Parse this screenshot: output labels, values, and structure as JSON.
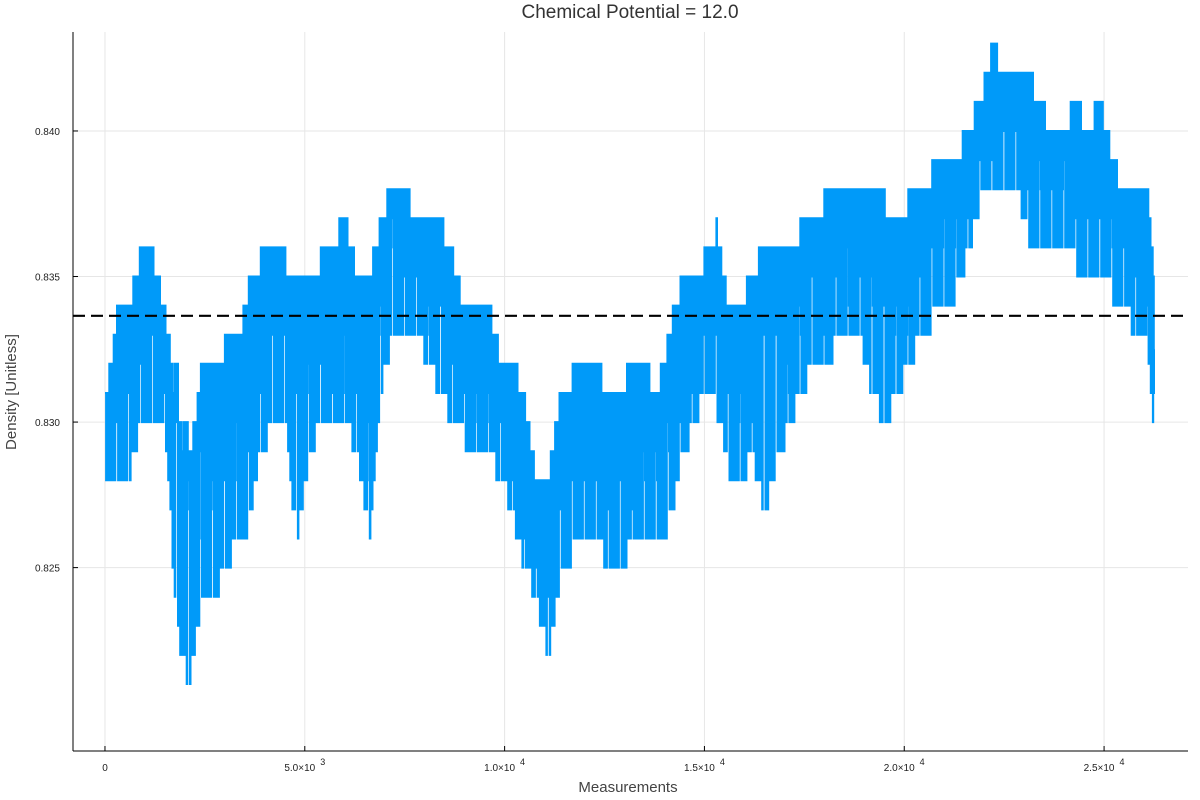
{
  "chart_data": {
    "type": "line",
    "title": "Chemical Potential = 12.0",
    "xlabel": "Measurements",
    "ylabel": "Density [Unitless]",
    "xlim": [
      -800,
      27100
    ],
    "ylim": [
      0.8187,
      0.8434
    ],
    "x_ticks": [
      {
        "value": 0,
        "mantissa": "0",
        "exponent": ""
      },
      {
        "value": 5000,
        "mantissa": "5.0×10",
        "exponent": "3"
      },
      {
        "value": 10000,
        "mantissa": "1.0×10",
        "exponent": "4"
      },
      {
        "value": 15000,
        "mantissa": "1.5×10",
        "exponent": "4"
      },
      {
        "value": 20000,
        "mantissa": "2.0×10",
        "exponent": "4"
      },
      {
        "value": 25000,
        "mantissa": "2.5×10",
        "exponent": "4"
      }
    ],
    "y_ticks": [
      {
        "value": 0.825,
        "label": "0.825"
      },
      {
        "value": 0.83,
        "label": "0.830"
      },
      {
        "value": 0.835,
        "label": "0.835"
      },
      {
        "value": 0.84,
        "label": "0.840"
      }
    ],
    "grid": true,
    "legend": "none",
    "series": [
      {
        "color": "#009af9",
        "x": [
          0,
          300,
          600,
          900,
          1200,
          1500,
          1800,
          2100,
          2400,
          2700,
          3000,
          3300,
          3600,
          3900,
          4200,
          4500,
          4800,
          5100,
          5400,
          5700,
          6000,
          6300,
          6600,
          6900,
          7200,
          7500,
          7800,
          8100,
          8400,
          8700,
          9000,
          9300,
          9600,
          9900,
          10200,
          10500,
          10800,
          11100,
          11400,
          11700,
          12000,
          12300,
          12600,
          12900,
          13200,
          13500,
          13800,
          14100,
          14400,
          14700,
          15000,
          15300,
          15600,
          15900,
          16200,
          16500,
          16800,
          17100,
          17400,
          17700,
          18000,
          18300,
          18600,
          18900,
          19200,
          19500,
          19800,
          20100,
          20400,
          20700,
          21000,
          21300,
          21600,
          21900,
          22200,
          22500,
          22800,
          23100,
          23400,
          23700,
          24000,
          24300,
          24600,
          24900,
          25200,
          25500,
          25800,
          26100,
          26250
        ],
        "values": [
          0.83,
          0.8315,
          0.832,
          0.8335,
          0.833,
          0.8315,
          0.83,
          0.827,
          0.828,
          0.829,
          0.8295,
          0.8285,
          0.83,
          0.832,
          0.833,
          0.8335,
          0.832,
          0.8315,
          0.833,
          0.832,
          0.833,
          0.832,
          0.83,
          0.834,
          0.8355,
          0.836,
          0.835,
          0.8345,
          0.834,
          0.833,
          0.8325,
          0.831,
          0.8315,
          0.8305,
          0.829,
          0.8275,
          0.826,
          0.8255,
          0.827,
          0.8285,
          0.829,
          0.8285,
          0.828,
          0.8285,
          0.829,
          0.8295,
          0.8285,
          0.8295,
          0.831,
          0.8325,
          0.8335,
          0.833,
          0.8315,
          0.8305,
          0.831,
          0.832,
          0.8315,
          0.8325,
          0.834,
          0.8345,
          0.834,
          0.8355,
          0.835,
          0.836,
          0.835,
          0.8345,
          0.8335,
          0.834,
          0.8355,
          0.836,
          0.8365,
          0.837,
          0.838,
          0.8395,
          0.8405,
          0.84,
          0.8405,
          0.8395,
          0.8385,
          0.838,
          0.8385,
          0.838,
          0.8375,
          0.8385,
          0.837,
          0.836,
          0.8355,
          0.8345,
          0.8325
        ],
        "upper": [
          0.831,
          0.8335,
          0.834,
          0.836,
          0.8355,
          0.834,
          0.83,
          0.829,
          0.8315,
          0.832,
          0.8325,
          0.8325,
          0.8345,
          0.8355,
          0.836,
          0.8355,
          0.835,
          0.8345,
          0.8355,
          0.836,
          0.837,
          0.835,
          0.835,
          0.837,
          0.838,
          0.838,
          0.837,
          0.837,
          0.837,
          0.8355,
          0.834,
          0.834,
          0.834,
          0.832,
          0.832,
          0.831,
          0.828,
          0.828,
          0.831,
          0.8315,
          0.832,
          0.832,
          0.831,
          0.831,
          0.832,
          0.832,
          0.831,
          0.833,
          0.8345,
          0.835,
          0.8355,
          0.8365,
          0.834,
          0.834,
          0.835,
          0.836,
          0.8355,
          0.836,
          0.8365,
          0.837,
          0.8375,
          0.838,
          0.838,
          0.8375,
          0.838,
          0.8375,
          0.837,
          0.8375,
          0.838,
          0.8385,
          0.8385,
          0.839,
          0.84,
          0.841,
          0.843,
          0.842,
          0.842,
          0.842,
          0.841,
          0.84,
          0.84,
          0.841,
          0.84,
          0.841,
          0.839,
          0.838,
          0.8375,
          0.8375,
          0.835
        ],
        "lower": [
          0.828,
          0.8285,
          0.828,
          0.83,
          0.8305,
          0.8295,
          0.823,
          0.821,
          0.824,
          0.824,
          0.825,
          0.826,
          0.8265,
          0.829,
          0.83,
          0.83,
          0.826,
          0.829,
          0.83,
          0.83,
          0.83,
          0.829,
          0.826,
          0.831,
          0.833,
          0.8335,
          0.833,
          0.832,
          0.831,
          0.83,
          0.8295,
          0.8285,
          0.829,
          0.828,
          0.827,
          0.825,
          0.824,
          0.822,
          0.825,
          0.8255,
          0.8265,
          0.826,
          0.825,
          0.825,
          0.826,
          0.8265,
          0.8255,
          0.8265,
          0.8285,
          0.83,
          0.831,
          0.8305,
          0.8285,
          0.828,
          0.829,
          0.827,
          0.8285,
          0.83,
          0.831,
          0.832,
          0.8315,
          0.833,
          0.8325,
          0.833,
          0.831,
          0.83,
          0.831,
          0.832,
          0.833,
          0.8335,
          0.834,
          0.8345,
          0.836,
          0.8375,
          0.838,
          0.8375,
          0.838,
          0.8365,
          0.836,
          0.8355,
          0.836,
          0.8355,
          0.835,
          0.8355,
          0.8345,
          0.834,
          0.833,
          0.8325,
          0.83
        ]
      },
      {
        "color": "#000000",
        "style": "dashed",
        "reference_y": 0.83365
      }
    ]
  }
}
